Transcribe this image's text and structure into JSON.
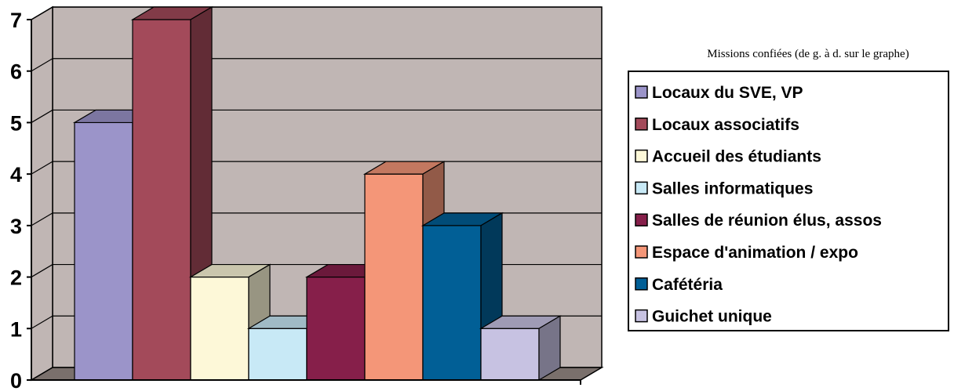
{
  "chart_data": {
    "type": "bar",
    "categories": [
      "Locaux du SVE, VP",
      "Locaux associatifs",
      "Accueil des étudiants",
      "Salles informatiques",
      "Salles de réunion élus, assos",
      "Espace d'animation / expo",
      "Cafétéria",
      "Guichet unique"
    ],
    "values": [
      5,
      7,
      2,
      1,
      2,
      4,
      3,
      1
    ],
    "colors": [
      "#9b94c9",
      "#a34a5a",
      "#fdf8d8",
      "#c8e9f6",
      "#861f4a",
      "#f49678",
      "#015f96",
      "#c7c2e2"
    ],
    "yticks": [
      0,
      1,
      2,
      3,
      4,
      5,
      6,
      7
    ],
    "ylim": [
      0,
      7
    ],
    "title": "",
    "xlabel": "",
    "ylabel": "",
    "grid": true,
    "legend_title": "Missions confiées (de g. à d. sur le graphe)",
    "legend_position": "right"
  },
  "colors": {
    "wall": "#c0b6b4",
    "floor": "#7a706c",
    "gridline": "#000000"
  }
}
